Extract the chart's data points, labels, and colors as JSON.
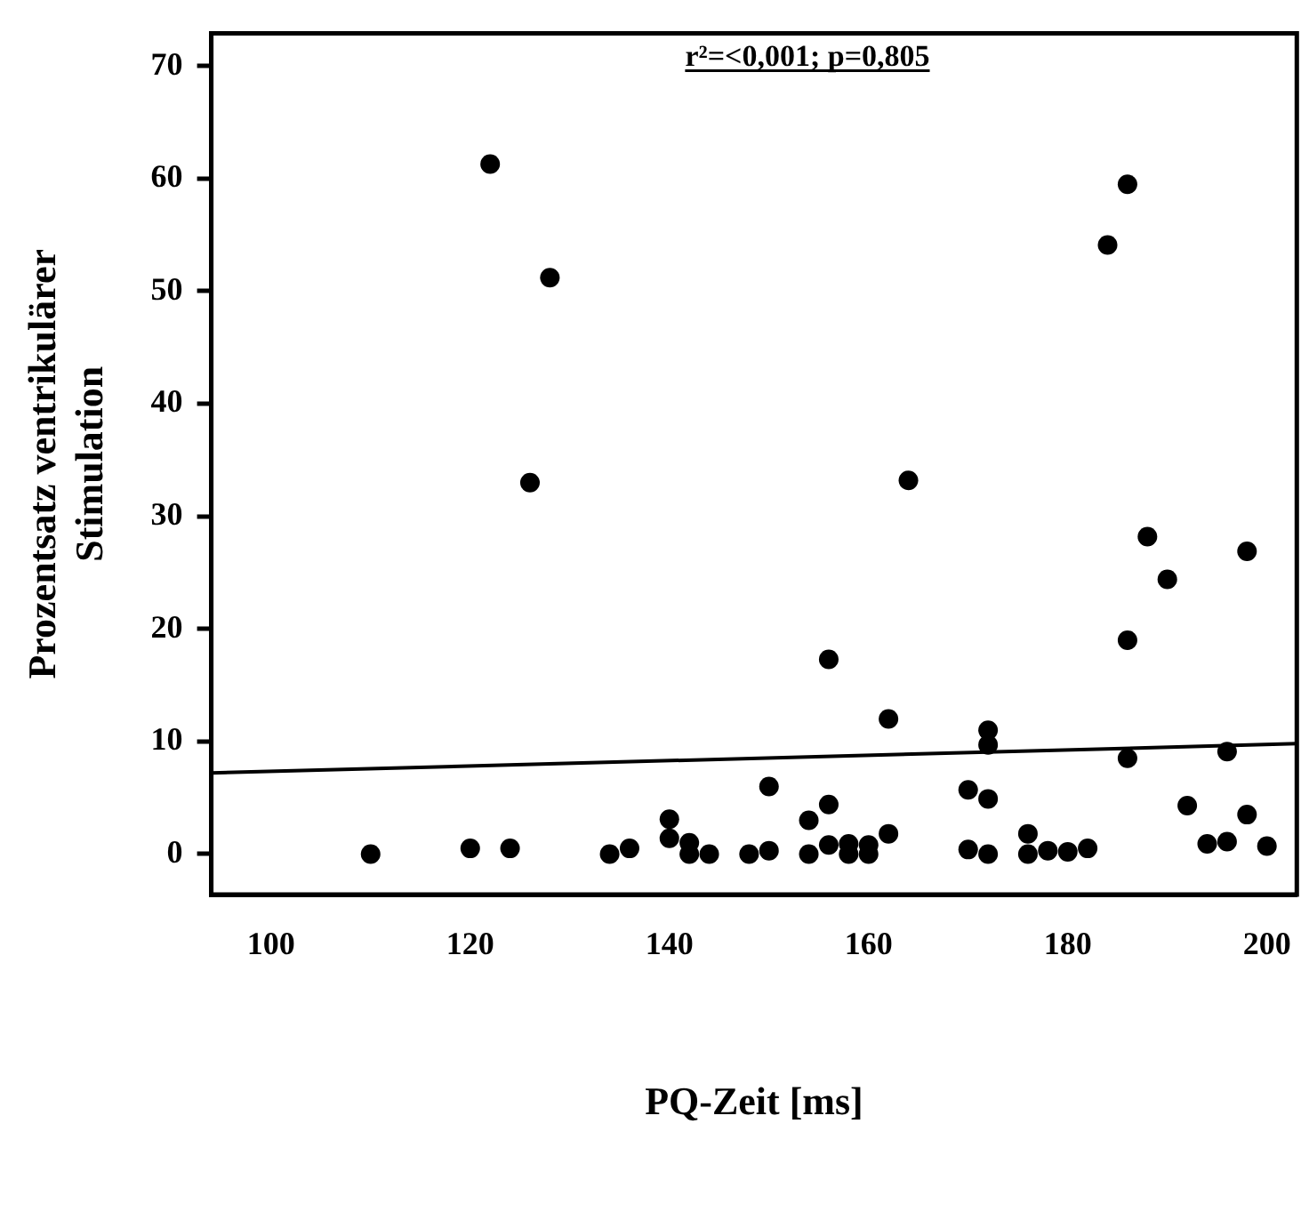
{
  "chart_data": {
    "type": "scatter",
    "xlabel": "PQ-Zeit [ms]",
    "ylabel": "Prozentsatz ventrikulärer Stimulation",
    "annotations": [
      "r²=<0,001; p=0,805"
    ],
    "xlim": [
      94,
      203
    ],
    "xticks": [
      100,
      120,
      140,
      160,
      180,
      200
    ],
    "ylim": [
      -3.6,
      72.9
    ],
    "yticks": [
      0,
      10,
      20,
      30,
      40,
      50,
      60,
      70
    ],
    "grid": false,
    "legend": false,
    "marker": "circle",
    "series": [
      {
        "color": "#000000",
        "x": [
          110,
          120,
          124,
          122,
          128,
          126,
          134,
          136,
          140,
          140,
          142,
          142,
          144,
          148,
          150,
          150,
          154,
          154,
          156,
          156,
          156,
          158,
          158,
          160,
          160,
          162,
          162,
          164,
          170,
          170,
          172,
          172,
          172,
          172,
          176,
          176,
          178,
          180,
          182,
          184,
          186,
          186,
          186,
          188,
          190,
          192,
          194,
          196,
          196,
          198,
          198,
          200
        ],
        "values": [
          0,
          0.5,
          0.5,
          61.3,
          51.2,
          33,
          0,
          0.5,
          3.1,
          1.4,
          1,
          0,
          0,
          0,
          6,
          0.3,
          3,
          0,
          17.3,
          4.4,
          0.8,
          0.9,
          0,
          0.8,
          0,
          12,
          1.8,
          33.2,
          5.7,
          0.4,
          11,
          9.7,
          4.9,
          0,
          1.8,
          0,
          0.3,
          0.2,
          0.5,
          54.1,
          59.5,
          19,
          8.5,
          28.2,
          24.4,
          4.3,
          0.9,
          9.1,
          1.1,
          26.9,
          3.5,
          0.7
        ]
      },
      {
        "type": "line",
        "color": "#000000",
        "marker": "none",
        "x": [
          94,
          203
        ],
        "values": [
          7.2,
          9.8
        ]
      }
    ]
  }
}
